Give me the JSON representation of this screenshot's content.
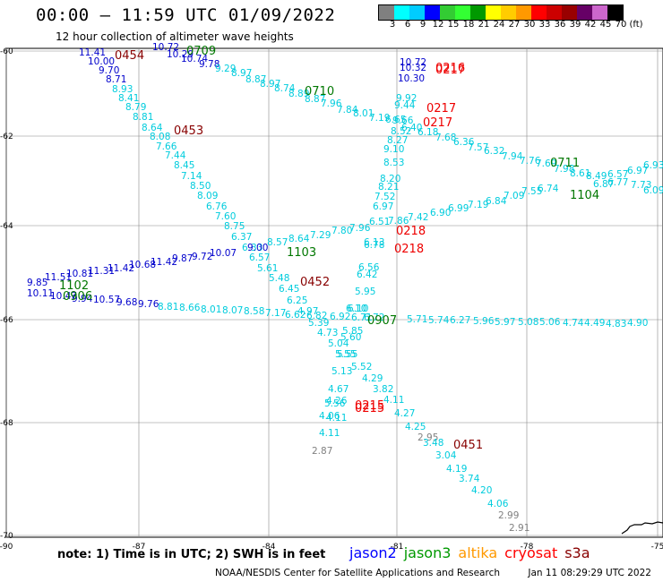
{
  "title": "00:00 — 11:59 UTC 01/09/2022",
  "subtitle": "12 hour collection of altimeter wave heights",
  "legend": {
    "colors": [
      "#808080",
      "#00ffff",
      "#00ccff",
      "#0000ff",
      "#33cc33",
      "#33ff33",
      "#009900",
      "#ffff00",
      "#ffcc00",
      "#ff9900",
      "#ff0000",
      "#cc0000",
      "#990000",
      "#660066",
      "#cc66cc",
      "#000000"
    ],
    "labels": [
      "3",
      "6",
      "9",
      "12",
      "15",
      "18",
      "21",
      "24",
      "27",
      "30",
      "33",
      "36",
      "39",
      "42",
      "45",
      "70",
      "(ft)"
    ]
  },
  "axes": {
    "lat_ticks": [
      "-60",
      "-62",
      "-64",
      "-66",
      "-68",
      "-70"
    ],
    "lon_ticks": [
      "-90",
      "-87",
      "-84",
      "-81",
      "-78",
      "-75"
    ]
  },
  "map_data": {
    "colors": {
      "grey": "#808080",
      "cyan": "#00ccdd",
      "blue": "#0000cc",
      "green": "#007700",
      "red": "#ee0000",
      "maroon": "#880000"
    },
    "points": [
      [
        "11.41",
        "blue",
        88,
        62
      ],
      [
        "10.00",
        "blue",
        98,
        72
      ],
      [
        "9.70",
        "blue",
        110,
        82
      ],
      [
        "8.71",
        "blue",
        118,
        92
      ],
      [
        "8.93",
        "cyan",
        125,
        103
      ],
      [
        "8.41",
        "cyan",
        132,
        113
      ],
      [
        "8.79",
        "cyan",
        140,
        123
      ],
      [
        "8.81",
        "cyan",
        148,
        134
      ],
      [
        "8.64",
        "cyan",
        158,
        146
      ],
      [
        "8.08",
        "cyan",
        167,
        156
      ],
      [
        "7.66",
        "cyan",
        174,
        167
      ],
      [
        "7.44",
        "cyan",
        184,
        177
      ],
      [
        "8.45",
        "cyan",
        194,
        188
      ],
      [
        "7.14",
        "cyan",
        202,
        200
      ],
      [
        "8.50",
        "cyan",
        212,
        211
      ],
      [
        "8.09",
        "cyan",
        220,
        222
      ],
      [
        "6.76",
        "cyan",
        230,
        234
      ],
      [
        "7.60",
        "cyan",
        240,
        245
      ],
      [
        "8.75",
        "cyan",
        250,
        256
      ],
      [
        "6.37",
        "cyan",
        258,
        268
      ],
      [
        "6.33",
        "cyan",
        270,
        280
      ],
      [
        "6.57",
        "cyan",
        278,
        291
      ],
      [
        "5.61",
        "cyan",
        287,
        303
      ],
      [
        "5.48",
        "cyan",
        300,
        314
      ],
      [
        "6.45",
        "cyan",
        311,
        326
      ],
      [
        "6.25",
        "cyan",
        320,
        339
      ],
      [
        "4.97",
        "cyan",
        332,
        351
      ],
      [
        "5.39",
        "cyan",
        344,
        364
      ],
      [
        "4.73",
        "cyan",
        354,
        375
      ],
      [
        "5.04",
        "cyan",
        366,
        387
      ],
      [
        "5.55",
        "cyan",
        376,
        399
      ],
      [
        "5.13",
        "cyan",
        370,
        418
      ],
      [
        "4.67",
        "cyan",
        366,
        438
      ],
      [
        "5.56",
        "cyan",
        362,
        454
      ],
      [
        "4.06",
        "cyan",
        356,
        468
      ],
      [
        "4.11",
        "cyan",
        356,
        487
      ],
      [
        "2.87",
        "grey",
        348,
        507
      ],
      [
        "10.72",
        "blue",
        170,
        56
      ],
      [
        "10.29",
        "blue",
        186,
        64
      ],
      [
        "10.74",
        "blue",
        202,
        69
      ],
      [
        "9.78",
        "blue",
        222,
        75
      ],
      [
        "9.29",
        "cyan",
        240,
        80
      ],
      [
        "8.97",
        "cyan",
        258,
        85
      ],
      [
        "8.87",
        "cyan",
        274,
        92
      ],
      [
        "8.97",
        "cyan",
        290,
        97
      ],
      [
        "8.74",
        "cyan",
        306,
        102
      ],
      [
        "8.89",
        "cyan",
        322,
        108
      ],
      [
        "8.87",
        "cyan",
        340,
        114
      ],
      [
        "7.96",
        "cyan",
        358,
        119
      ],
      [
        "7.84",
        "cyan",
        376,
        126
      ],
      [
        "8.01",
        "cyan",
        394,
        130
      ],
      [
        "7.19",
        "cyan",
        412,
        135
      ],
      [
        "6.65",
        "cyan",
        430,
        137
      ],
      [
        "6.40",
        "cyan",
        448,
        146
      ],
      [
        "6.18",
        "cyan",
        466,
        151
      ],
      [
        "7.68",
        "cyan",
        486,
        157
      ],
      [
        "6.36",
        "cyan",
        506,
        162
      ],
      [
        "7.57",
        "cyan",
        522,
        168
      ],
      [
        "6.32",
        "cyan",
        540,
        172
      ],
      [
        "7.94",
        "cyan",
        560,
        178
      ],
      [
        "7.76",
        "cyan",
        580,
        183
      ],
      [
        "7.69",
        "cyan",
        598,
        186
      ],
      [
        "7.98",
        "cyan",
        618,
        192
      ],
      [
        "8.61",
        "cyan",
        636,
        197
      ],
      [
        "8.49",
        "cyan",
        654,
        200
      ],
      [
        "6.57",
        "cyan",
        678,
        198
      ],
      [
        "6.97",
        "cyan",
        700,
        194
      ],
      [
        "6.93",
        "cyan",
        718,
        188
      ],
      [
        "7.73",
        "cyan",
        704,
        210
      ],
      [
        "6.09",
        "cyan",
        718,
        216
      ],
      [
        "6.77",
        "cyan",
        678,
        207
      ],
      [
        "6.87",
        "cyan",
        662,
        209
      ],
      [
        "9.85",
        "blue",
        30,
        319
      ],
      [
        "11.51",
        "blue",
        50,
        313
      ],
      [
        "10.81",
        "blue",
        74,
        309
      ],
      [
        "11.31",
        "blue",
        98,
        306
      ],
      [
        "11.42",
        "blue",
        120,
        303
      ],
      [
        "10.68",
        "blue",
        144,
        299
      ],
      [
        "11.42",
        "blue",
        168,
        296
      ],
      [
        "9.87",
        "blue",
        192,
        292
      ],
      [
        "9.72",
        "blue",
        214,
        290
      ],
      [
        "10.07",
        "blue",
        234,
        286
      ],
      [
        "9.00",
        "blue",
        276,
        280
      ],
      [
        "8.57",
        "cyan",
        298,
        274
      ],
      [
        "8.64",
        "cyan",
        322,
        270
      ],
      [
        "7.29",
        "cyan",
        346,
        266
      ],
      [
        "7.80",
        "cyan",
        370,
        261
      ],
      [
        "7.96",
        "cyan",
        390,
        258
      ],
      [
        "7.86",
        "cyan",
        433,
        250
      ],
      [
        "7.42",
        "cyan",
        455,
        246
      ],
      [
        "6.90",
        "cyan",
        480,
        241
      ],
      [
        "6.99",
        "cyan",
        500,
        236
      ],
      [
        "7.19",
        "cyan",
        522,
        232
      ],
      [
        "6.84",
        "cyan",
        542,
        228
      ],
      [
        "7.09",
        "cyan",
        562,
        222
      ],
      [
        "7.55",
        "cyan",
        582,
        217
      ],
      [
        "6.74",
        "cyan",
        600,
        214
      ],
      [
        "10.11",
        "blue",
        30,
        331
      ],
      [
        "10.47",
        "blue",
        56,
        334
      ],
      [
        "9.94",
        "blue",
        80,
        337
      ],
      [
        "10.57",
        "blue",
        104,
        338
      ],
      [
        "9.68",
        "blue",
        130,
        341
      ],
      [
        "9.76",
        "blue",
        154,
        343
      ],
      [
        "8.81",
        "cyan",
        176,
        346
      ],
      [
        "8.66",
        "cyan",
        200,
        347
      ],
      [
        "8.01",
        "cyan",
        224,
        349
      ],
      [
        "8.07",
        "cyan",
        248,
        350
      ],
      [
        "8.58",
        "cyan",
        272,
        351
      ],
      [
        "7.17",
        "cyan",
        296,
        353
      ],
      [
        "6.62",
        "cyan",
        318,
        355
      ],
      [
        "6.82",
        "cyan",
        342,
        356
      ],
      [
        "6.92",
        "cyan",
        368,
        357
      ],
      [
        "6.71",
        "cyan",
        392,
        358
      ],
      [
        "6.10",
        "cyan",
        386,
        348
      ],
      [
        "6.72",
        "cyan",
        406,
        358
      ],
      [
        "5.71",
        "cyan",
        454,
        360
      ],
      [
        "5.74",
        "cyan",
        478,
        361
      ],
      [
        "6.27",
        "cyan",
        502,
        361
      ],
      [
        "5.96",
        "cyan",
        528,
        362
      ],
      [
        "5.97",
        "cyan",
        552,
        363
      ],
      [
        "5.08",
        "cyan",
        578,
        363
      ],
      [
        "5.06",
        "cyan",
        602,
        363
      ],
      [
        "4.74",
        "cyan",
        628,
        364
      ],
      [
        "4.49",
        "cyan",
        652,
        364
      ],
      [
        "4.83",
        "cyan",
        676,
        365
      ],
      [
        "4.90",
        "cyan",
        700,
        364
      ],
      [
        "10.72",
        "blue",
        446,
        73
      ],
      [
        "10.32",
        "blue",
        446,
        79
      ],
      [
        "10.30",
        "blue",
        444,
        91
      ],
      [
        "9.92",
        "cyan",
        442,
        113
      ],
      [
        "9.44",
        "cyan",
        440,
        121
      ],
      [
        "9.66",
        "cyan",
        438,
        138
      ],
      [
        "8.52",
        "cyan",
        436,
        150
      ],
      [
        "8.27",
        "cyan",
        432,
        160
      ],
      [
        "9.10",
        "cyan",
        428,
        170
      ],
      [
        "8.53",
        "cyan",
        428,
        185
      ],
      [
        "8.20",
        "cyan",
        424,
        203
      ],
      [
        "8.21",
        "cyan",
        422,
        212
      ],
      [
        "7.52",
        "cyan",
        418,
        223
      ],
      [
        "6.97",
        "cyan",
        416,
        234
      ],
      [
        "6.51",
        "cyan",
        412,
        251
      ],
      [
        "6.78",
        "cyan",
        406,
        277
      ],
      [
        "6.13",
        "cyan",
        406,
        274
      ],
      [
        "6.56",
        "cyan",
        400,
        302
      ],
      [
        "6.42",
        "cyan",
        398,
        310
      ],
      [
        "5.95",
        "cyan",
        396,
        329
      ],
      [
        "6.10",
        "cyan",
        388,
        348
      ],
      [
        "5.85",
        "cyan",
        382,
        373
      ],
      [
        "5.60",
        "cyan",
        380,
        380
      ],
      [
        "5.55",
        "cyan",
        374,
        399
      ],
      [
        "5.52",
        "cyan",
        392,
        413
      ],
      [
        "4.29",
        "cyan",
        404,
        426
      ],
      [
        "3.82",
        "cyan",
        416,
        438
      ],
      [
        "4.11",
        "cyan",
        428,
        450
      ],
      [
        "4.27",
        "cyan",
        440,
        465
      ],
      [
        "4.25",
        "cyan",
        452,
        480
      ],
      [
        "2.95",
        "grey",
        466,
        492
      ],
      [
        "3.48",
        "cyan",
        472,
        498
      ],
      [
        "3.04",
        "cyan",
        486,
        512
      ],
      [
        "4.19",
        "cyan",
        498,
        527
      ],
      [
        "3.74",
        "cyan",
        512,
        538
      ],
      [
        "4.20",
        "cyan",
        526,
        551
      ],
      [
        "4.06",
        "cyan",
        544,
        566
      ],
      [
        "2.99",
        "grey",
        556,
        579
      ],
      [
        "2.91",
        "grey",
        568,
        593
      ],
      [
        "4.26",
        "cyan",
        364,
        451
      ],
      [
        "4.11",
        "cyan",
        364,
        470
      ]
    ],
    "time_labels": [
      [
        "0454",
        "maroon",
        128,
        66
      ],
      [
        "0709",
        "green",
        208,
        61
      ],
      [
        "0453",
        "maroon",
        194,
        150
      ],
      [
        "0710",
        "green",
        340,
        106
      ],
      [
        "0216",
        "red",
        486,
        80
      ],
      [
        "0217",
        "red",
        486,
        82
      ],
      [
        "0217",
        "red",
        476,
        125
      ],
      [
        "0217",
        "red",
        472,
        141
      ],
      [
        "0711",
        "green",
        614,
        186
      ],
      [
        "1104",
        "green",
        636,
        222
      ],
      [
        "0218",
        "red",
        442,
        262
      ],
      [
        "0218",
        "red",
        440,
        282
      ],
      [
        "1103",
        "green",
        320,
        286
      ],
      [
        "0452",
        "maroon",
        335,
        319
      ],
      [
        "1102",
        "green",
        66,
        323
      ],
      [
        "0906",
        "green",
        70,
        335
      ],
      [
        "0907",
        "green",
        410,
        362
      ],
      [
        "0215",
        "red",
        396,
        457
      ],
      [
        "0215",
        "red",
        396,
        460
      ],
      [
        "0451",
        "maroon",
        506,
        501
      ]
    ],
    "coast": [
      [
        694,
        596
      ],
      [
        700,
        592
      ],
      [
        703,
        588
      ],
      [
        708,
        586
      ],
      [
        716,
        586
      ],
      [
        720,
        584
      ],
      [
        728,
        585
      ],
      [
        734,
        583
      ],
      [
        740,
        584
      ]
    ]
  },
  "note": "note: 1) Time is in UTC; 2) SWH is in feet",
  "satellites": [
    {
      "name": "jason2",
      "color": "#0000ff"
    },
    {
      "name": "jason3",
      "color": "#009900"
    },
    {
      "name": "altika",
      "color": "#ff9900"
    },
    {
      "name": "cryosat",
      "color": "#ff0000"
    },
    {
      "name": "s3a",
      "color": "#880000"
    }
  ],
  "credit": "NOAA/NESDIS Center for Satellite Applications and Research",
  "timestamp": "Jan 11 08:29:29 UTC 2022"
}
